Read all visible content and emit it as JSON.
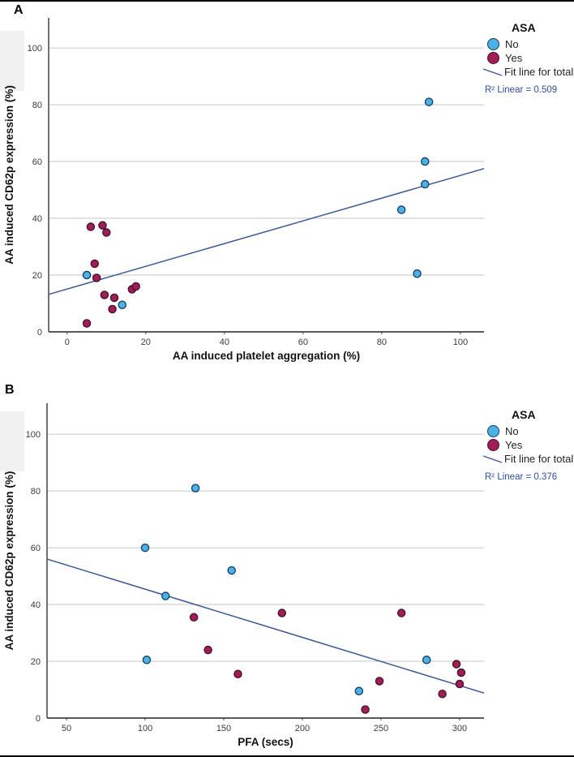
{
  "colors": {
    "no_fill": "#4bb2e6",
    "no_stroke": "#123a63",
    "yes_fill": "#a01d56",
    "yes_stroke": "#43102b",
    "fit_line": "#3a5894",
    "r2_text": "#2e4d9b",
    "grid": "#c6c6c6",
    "axis": "#424242",
    "tick_text": "#3a3a3a",
    "title_text": "#111111"
  },
  "chart_data": [
    {
      "type": "scatter",
      "panel_label": "A",
      "xlabel": "AA induced platelet aggregation (%)",
      "ylabel": "AA induced CD62p expression (%)",
      "xticks": [
        0,
        20,
        40,
        60,
        80,
        100
      ],
      "yticks": [
        0,
        20,
        40,
        60,
        80,
        100
      ],
      "xlim": [
        -4.7,
        106
      ],
      "ylim": [
        0,
        110.6
      ],
      "grid": "horizontal",
      "legend_title": "ASA",
      "legend_position": "top-right-outside",
      "series": [
        {
          "name": "No",
          "points": [
            [
              5,
              20
            ],
            [
              14,
              9.5
            ],
            [
              85,
              43
            ],
            [
              89,
              20.5
            ],
            [
              91,
              52
            ],
            [
              91,
              60
            ],
            [
              92,
              81
            ]
          ]
        },
        {
          "name": "Yes",
          "points": [
            [
              5,
              3
            ],
            [
              6,
              37
            ],
            [
              7,
              24
            ],
            [
              7.5,
              19
            ],
            [
              9,
              37.5
            ],
            [
              9.5,
              13
            ],
            [
              10,
              35
            ],
            [
              11.5,
              8
            ],
            [
              12,
              12
            ],
            [
              16.5,
              15
            ],
            [
              17.5,
              16
            ]
          ]
        }
      ],
      "fit_line": {
        "label": "Fit line for total",
        "x1": -4.7,
        "y1": 13.2,
        "x2": 106,
        "y2": 57.5
      },
      "r2_label": "R² Linear = 0.509"
    },
    {
      "type": "scatter",
      "panel_label": "B",
      "xlabel": "PFA (secs)",
      "ylabel": "AA induced CD62p expression (%)",
      "xticks": [
        50,
        100,
        150,
        200,
        250,
        300
      ],
      "yticks": [
        0,
        20,
        40,
        60,
        80,
        100
      ],
      "xlim": [
        37.6,
        315.5
      ],
      "ylim": [
        0,
        110.9
      ],
      "grid": "horizontal",
      "legend_title": "ASA",
      "legend_position": "top-right-outside",
      "series": [
        {
          "name": "No",
          "points": [
            [
              100,
              60
            ],
            [
              101,
              20.5
            ],
            [
              113,
              43
            ],
            [
              132,
              81
            ],
            [
              155,
              52
            ],
            [
              236,
              9.5
            ],
            [
              279,
              20.5
            ]
          ]
        },
        {
          "name": "Yes",
          "points": [
            [
              131,
              35.5
            ],
            [
              140,
              24
            ],
            [
              159,
              15.5
            ],
            [
              187,
              37
            ],
            [
              240,
              3
            ],
            [
              249,
              13
            ],
            [
              263,
              37
            ],
            [
              289,
              8.5
            ],
            [
              298,
              19
            ],
            [
              300,
              12
            ],
            [
              301,
              16
            ]
          ]
        }
      ],
      "fit_line": {
        "label": "Fit line for total",
        "x1": 37.6,
        "y1": 56,
        "x2": 315.5,
        "y2": 8.8
      },
      "r2_label": "R² Linear = 0.376"
    }
  ]
}
